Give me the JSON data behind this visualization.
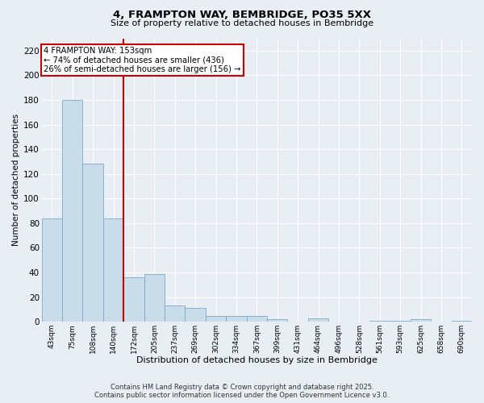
{
  "title_line1": "4, FRAMPTON WAY, BEMBRIDGE, PO35 5XX",
  "title_line2": "Size of property relative to detached houses in Bembridge",
  "xlabel": "Distribution of detached houses by size in Bembridge",
  "ylabel": "Number of detached properties",
  "categories": [
    "43sqm",
    "75sqm",
    "108sqm",
    "140sqm",
    "172sqm",
    "205sqm",
    "237sqm",
    "269sqm",
    "302sqm",
    "334sqm",
    "367sqm",
    "399sqm",
    "431sqm",
    "464sqm",
    "496sqm",
    "528sqm",
    "561sqm",
    "593sqm",
    "625sqm",
    "658sqm",
    "690sqm"
  ],
  "values": [
    84,
    180,
    128,
    84,
    36,
    39,
    13,
    11,
    5,
    5,
    5,
    2,
    0,
    3,
    0,
    0,
    1,
    1,
    2,
    0,
    1
  ],
  "bar_color": "#c9dcea",
  "bar_edge_color": "#7aaac8",
  "vline_pos": 3.5,
  "vline_color": "#cc0000",
  "annotation_text": "4 FRAMPTON WAY: 153sqm\n← 74% of detached houses are smaller (436)\n26% of semi-detached houses are larger (156) →",
  "annotation_box_color": "#cc0000",
  "ylim": [
    0,
    230
  ],
  "yticks": [
    0,
    20,
    40,
    60,
    80,
    100,
    120,
    140,
    160,
    180,
    200,
    220
  ],
  "background_color": "#e8eef4",
  "grid_color": "#ffffff",
  "footer_line1": "Contains HM Land Registry data © Crown copyright and database right 2025.",
  "footer_line2": "Contains public sector information licensed under the Open Government Licence v3.0."
}
